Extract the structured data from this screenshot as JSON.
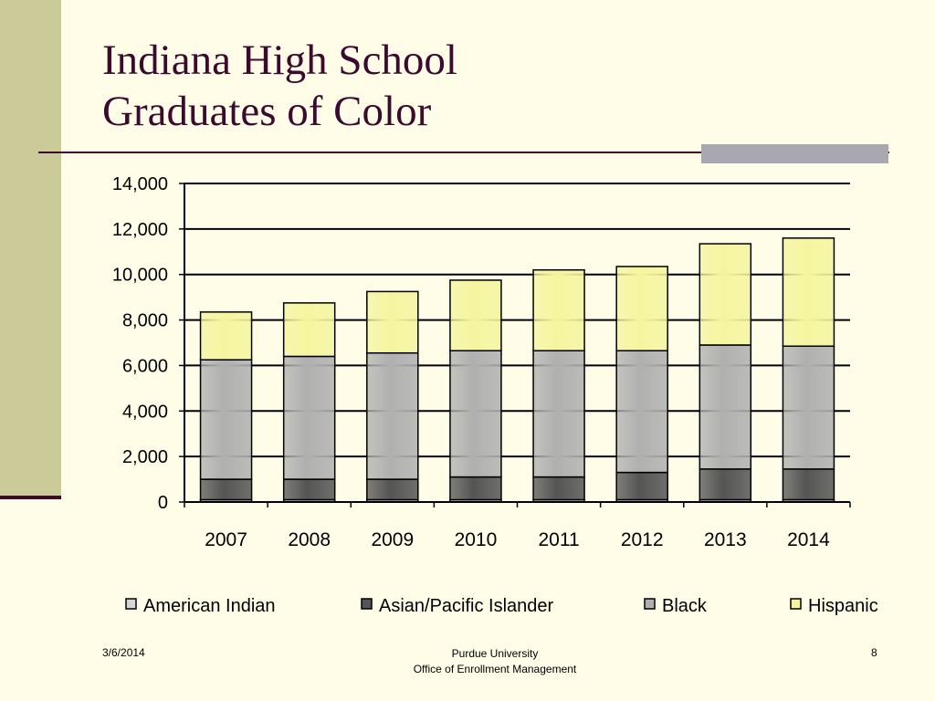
{
  "title": {
    "line1": "Indiana High School",
    "line2": "Graduates of Color"
  },
  "footer": {
    "date": "3/6/2014",
    "org_line1": "Purdue University",
    "org_line2": "Office of Enrollment Management",
    "page": "8"
  },
  "chart_data": {
    "type": "bar",
    "stacked": true,
    "categories": [
      "2007",
      "2008",
      "2009",
      "2010",
      "2011",
      "2012",
      "2013",
      "2014"
    ],
    "series": [
      {
        "name": "American Indian",
        "color": "#d6d6d6",
        "values": [
          100,
          100,
          100,
          100,
          100,
          100,
          100,
          100
        ]
      },
      {
        "name": "Asian/Pacific Islander",
        "color": "#555555",
        "values": [
          900,
          900,
          900,
          1000,
          1000,
          1200,
          1350,
          1350
        ]
      },
      {
        "name": "Black",
        "color": "#b0b0b0",
        "values": [
          5250,
          5400,
          5550,
          5550,
          5550,
          5350,
          5450,
          5400
        ]
      },
      {
        "name": "Hispanic",
        "color": "#f5f5a0",
        "values": [
          2100,
          2350,
          2700,
          3100,
          3550,
          3700,
          4450,
          4750
        ]
      }
    ],
    "ylim": [
      0,
      14000
    ],
    "yticks": [
      "0",
      "2,000",
      "4,000",
      "6,000",
      "8,000",
      "10,000",
      "12,000",
      "14,000"
    ],
    "ytick_values": [
      0,
      2000,
      4000,
      6000,
      8000,
      10000,
      12000,
      14000
    ],
    "grid": true,
    "legend_position": "bottom"
  }
}
